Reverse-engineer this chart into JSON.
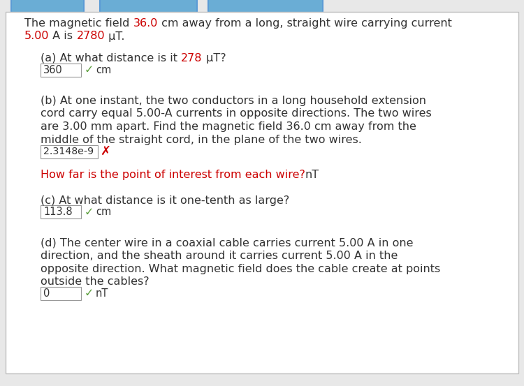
{
  "bg_color": "#e8e8e8",
  "panel_bg": "#ffffff",
  "border_color": "#c0c0c0",
  "text_color": "#333333",
  "red_color": "#cc0000",
  "green_color": "#5a9e3a",
  "tab_bg": "#6aadd5",
  "tab_border": "#5b9bd5",
  "intro_line1_parts": [
    {
      "text": "The magnetic field ",
      "color": "#333333"
    },
    {
      "text": "36.0",
      "color": "#cc0000"
    },
    {
      "text": " cm away from a long, straight wire carrying current",
      "color": "#333333"
    }
  ],
  "intro_line2_parts": [
    {
      "text": "5.00",
      "color": "#cc0000"
    },
    {
      "text": " A is ",
      "color": "#333333"
    },
    {
      "text": "2780",
      "color": "#cc0000"
    },
    {
      "text": " μT.",
      "color": "#333333"
    }
  ],
  "qa_a_q_parts": [
    {
      "text": "(a) At what distance is it ",
      "color": "#333333"
    },
    {
      "text": "278",
      "color": "#cc0000"
    },
    {
      "text": " μT?",
      "color": "#333333"
    }
  ],
  "qa_a_box": "360",
  "qa_a_correct": true,
  "qa_a_unit": "cm",
  "qa_b_lines": [
    "(b) At one instant, the two conductors in a long household extension",
    "cord carry equal 5.00-A currents in opposite directions. The two wires",
    "are 3.00 mm apart. Find the magnetic field 36.0 cm away from the",
    "middle of the straight cord, in the plane of the two wires."
  ],
  "qa_b_box": "2.3148e-9",
  "qa_b_correct": false,
  "qa_b_hint_red": "How far is the point of interest from each wire?",
  "qa_b_hint_black": " nT",
  "qa_c_line": "(c) At what distance is it one-tenth as large?",
  "qa_c_box": "113.8",
  "qa_c_correct": true,
  "qa_c_unit": "cm",
  "qa_d_lines": [
    "(d) The center wire in a coaxial cable carries current 5.00 A in one",
    "direction, and the sheath around it carries current 5.00 A in the",
    "opposite direction. What magnetic field does the cable create at points",
    "outside the cables?"
  ],
  "qa_d_box": "0",
  "qa_d_correct": true,
  "qa_d_unit": "nT",
  "figsize": [
    7.5,
    5.53
  ],
  "dpi": 100
}
